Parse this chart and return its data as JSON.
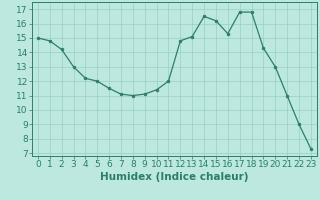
{
  "x": [
    0,
    1,
    2,
    3,
    4,
    5,
    6,
    7,
    8,
    9,
    10,
    11,
    12,
    13,
    14,
    15,
    16,
    17,
    18,
    19,
    20,
    21,
    22,
    23
  ],
  "y": [
    15.0,
    14.8,
    14.2,
    13.0,
    12.2,
    12.0,
    11.5,
    11.1,
    11.0,
    11.1,
    11.4,
    12.0,
    14.8,
    15.1,
    16.5,
    16.2,
    15.3,
    16.8,
    16.8,
    14.3,
    13.0,
    11.0,
    9.0,
    7.3
  ],
  "line_color": "#2d7d6d",
  "marker_color": "#2d7d6d",
  "bg_color": "#bce8e0",
  "grid_color": "#99cfc6",
  "xlabel": "Humidex (Indice chaleur)",
  "ylabel_ticks": [
    7,
    8,
    9,
    10,
    11,
    12,
    13,
    14,
    15,
    16,
    17
  ],
  "xlim": [
    -0.5,
    23.5
  ],
  "ylim": [
    6.8,
    17.5
  ],
  "xlabel_fontsize": 7.5,
  "tick_fontsize": 6.5
}
